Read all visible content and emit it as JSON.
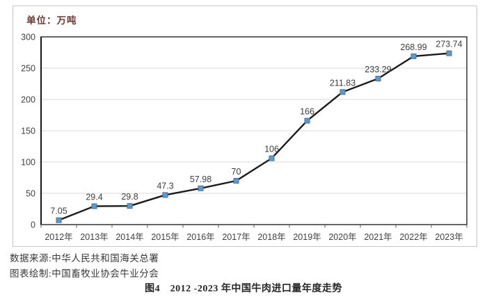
{
  "unit_label": "单位：万吨",
  "footer": {
    "source_line": "数据来源:中华人民共和国海关总署",
    "credit_line": "图表绘制:中国畜牧业协会牛业分会",
    "caption": "图4　2012 -2023 年中国牛肉进口量年度走势"
  },
  "colors": {
    "marker_fill": "#5B9BD5",
    "marker_border": "#41719C",
    "line": "#1a1a1a",
    "grid": "#d9d9d9",
    "plot_border": "#333333",
    "tick_text": "#3f3f3f",
    "data_label_text": "#3d3d3d",
    "frame_border": "#c6c6c6",
    "unit_text": "#6e3a30"
  },
  "chart_data": {
    "type": "line",
    "title": "",
    "xlabel": "",
    "ylabel": "单位：万吨",
    "categories": [
      "2012年",
      "2013年",
      "2014年",
      "2015年",
      "2016年",
      "2017年",
      "2018年",
      "2019年",
      "2020年",
      "2021年",
      "2022年",
      "2023年"
    ],
    "series": [
      {
        "name": "牛肉进口量",
        "values": [
          7.05,
          29.4,
          29.8,
          47.3,
          57.98,
          70,
          106,
          166,
          211.83,
          233.29,
          268.99,
          273.74
        ]
      }
    ],
    "data_labels": [
      "7.05",
      "29.4",
      "29.8",
      "47.3",
      "57.98",
      "70",
      "106",
      "166",
      "211.83",
      "233.29",
      "268.99",
      "273.74"
    ],
    "ylim": [
      0,
      300
    ],
    "yticks": [
      0,
      50,
      100,
      150,
      200,
      250,
      300
    ],
    "grid": true,
    "legend": false,
    "marker": "square"
  }
}
